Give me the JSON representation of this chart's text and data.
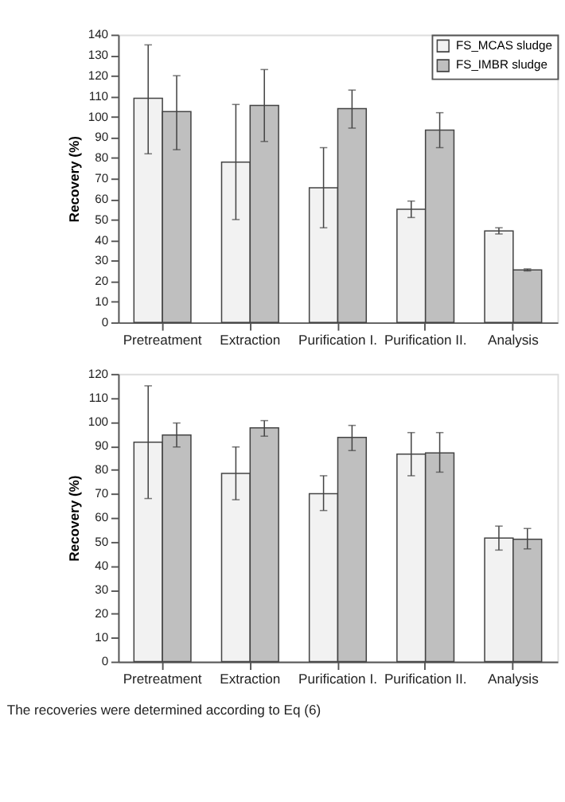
{
  "chart_data": [
    {
      "type": "bar",
      "ylabel": "Recovery (%)",
      "categories": [
        "Pretreatment",
        "Extraction",
        "Purification I.",
        "Purification II.",
        "Analysis"
      ],
      "series": [
        {
          "name": "FS_MCAS sludge",
          "color": "#f2f2f2",
          "values": [
            109,
            78,
            65.5,
            55,
            44.5
          ],
          "errors": [
            [
              82,
              135
            ],
            [
              50,
              106
            ],
            [
              46,
              85
            ],
            [
              51,
              59
            ],
            [
              43,
              46
            ]
          ]
        },
        {
          "name": "FS_IMBR sludge",
          "color": "#bfbfbf",
          "values": [
            102.5,
            105.5,
            104,
            93.5,
            25.5
          ],
          "errors": [
            [
              84,
              120
            ],
            [
              88,
              123
            ],
            [
              94.5,
              113
            ],
            [
              85,
              102
            ],
            [
              25,
              26
            ]
          ]
        }
      ],
      "ylim": [
        0,
        140
      ],
      "yticks": [
        0,
        10,
        20,
        30,
        40,
        50,
        60,
        70,
        80,
        90,
        100,
        110,
        120,
        130,
        140
      ],
      "grid": false,
      "legend": "top right"
    },
    {
      "type": "bar",
      "ylabel": "Recovery (%)",
      "categories": [
        "Pretreatment",
        "Extraction",
        "Purification I.",
        "Purification II.",
        "Analysis"
      ],
      "series": [
        {
          "color": "#f2f2f2",
          "values": [
            91.5,
            78.5,
            70,
            86.5,
            51.5
          ],
          "errors": [
            [
              68,
              115
            ],
            [
              67.5,
              89.5
            ],
            [
              63,
              77.5
            ],
            [
              77.5,
              95.5
            ],
            [
              46.5,
              56.5
            ]
          ]
        },
        {
          "color": "#bfbfbf",
          "values": [
            94.5,
            97.5,
            93.5,
            87,
            51
          ],
          "errors": [
            [
              89.5,
              99.5
            ],
            [
              94,
              100.5
            ],
            [
              88,
              98.5
            ],
            [
              79,
              95.5
            ],
            [
              47,
              55.5
            ]
          ]
        }
      ],
      "ylim": [
        0,
        120
      ],
      "yticks": [
        0,
        10,
        20,
        30,
        40,
        50,
        60,
        70,
        80,
        90,
        100,
        110,
        120
      ],
      "grid": false,
      "annotations": [
        "The recoveries were determined according to Eq (6)"
      ]
    }
  ]
}
